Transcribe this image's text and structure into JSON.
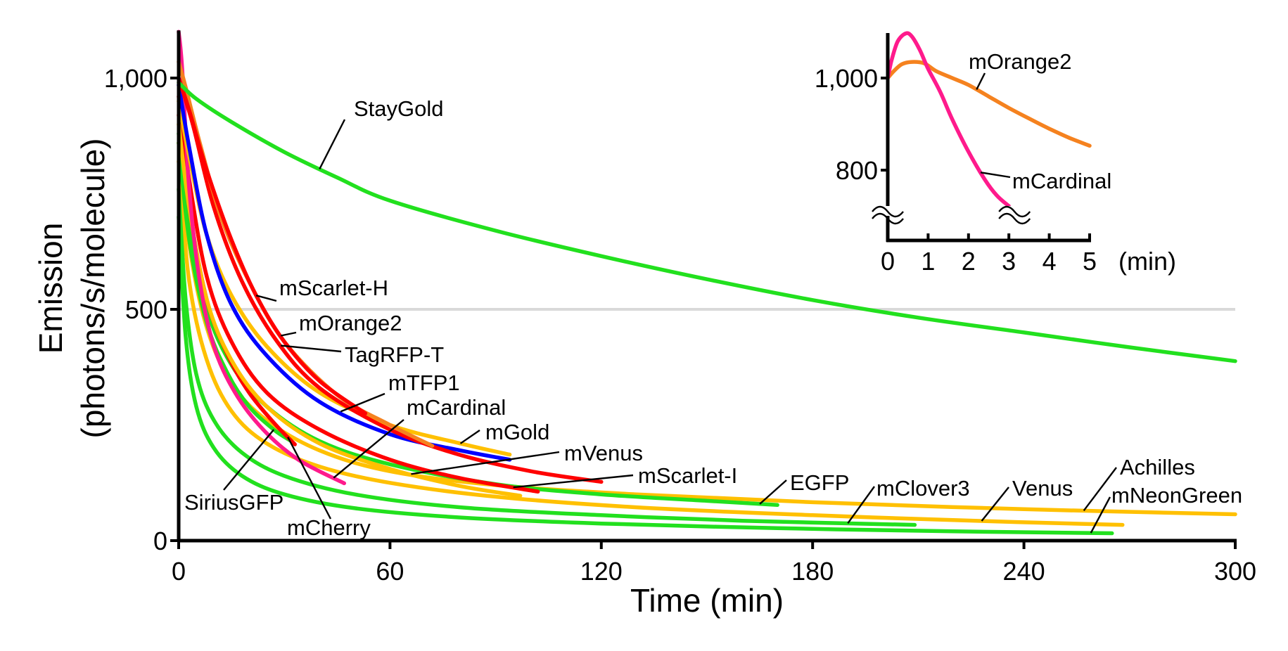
{
  "chart_data": [
    {
      "type": "line",
      "title": "",
      "xlabel": "Time (min)",
      "ylabel": "Emission",
      "ylabel2": "(photons/s/molecule)",
      "xlim": [
        0,
        300
      ],
      "ylim": [
        0,
        1100
      ],
      "xticks": [
        0,
        60,
        120,
        180,
        240,
        300
      ],
      "xtick_labels": [
        "0",
        "60",
        "120",
        "180",
        "240",
        "300"
      ],
      "yticks": [
        0,
        500,
        1000
      ],
      "ytick_labels": [
        "0",
        "500",
        "1,000"
      ],
      "reference_line": 500,
      "grid": false,
      "legend": "none (direct labels with leader lines)",
      "series": [
        {
          "name": "StayGold",
          "color": "#22e01e",
          "points": [
            [
              0,
              990
            ],
            [
              5,
              955
            ],
            [
              15,
              905
            ],
            [
              30,
              840
            ],
            [
              45,
              785
            ],
            [
              60,
              735
            ],
            [
              90,
              670
            ],
            [
              120,
              615
            ],
            [
              150,
              565
            ],
            [
              180,
              520
            ],
            [
              210,
              482
            ],
            [
              240,
              450
            ],
            [
              270,
              418
            ],
            [
              300,
              388
            ]
          ]
        },
        {
          "name": "mScarlet-H",
          "color": "#ff0000",
          "points": [
            [
              0,
              1000
            ],
            [
              3,
              930
            ],
            [
              8,
              800
            ],
            [
              15,
              650
            ],
            [
              22,
              530
            ],
            [
              30,
              430
            ],
            [
              40,
              345
            ],
            [
              53,
              275
            ]
          ]
        },
        {
          "name": "mOrange2",
          "color": "#f5821f",
          "points": [
            [
              0,
              1035
            ],
            [
              2,
              980
            ],
            [
              6,
              860
            ],
            [
              12,
              700
            ],
            [
              20,
              560
            ],
            [
              30,
              430
            ],
            [
              45,
              315
            ],
            [
              60,
              250
            ],
            [
              72,
              205
            ]
          ]
        },
        {
          "name": "TagRFP-T",
          "color": "#ff0000",
          "points": [
            [
              0,
              1000
            ],
            [
              4,
              900
            ],
            [
              10,
              720
            ],
            [
              18,
              560
            ],
            [
              28,
              430
            ],
            [
              40,
              330
            ],
            [
              60,
              240
            ],
            [
              80,
              185
            ],
            [
              100,
              150
            ],
            [
              120,
              127
            ]
          ]
        },
        {
          "name": "mTFP1",
          "color": "#0000ff",
          "points": [
            [
              0,
              985
            ],
            [
              3,
              850
            ],
            [
              8,
              660
            ],
            [
              15,
              510
            ],
            [
              25,
              400
            ],
            [
              40,
              300
            ],
            [
              60,
              230
            ],
            [
              80,
              195
            ],
            [
              94,
              175
            ]
          ]
        },
        {
          "name": "mGold",
          "color": "#ffc000",
          "points": [
            [
              0,
              950
            ],
            [
              3,
              830
            ],
            [
              8,
              660
            ],
            [
              15,
              530
            ],
            [
              25,
              420
            ],
            [
              40,
              320
            ],
            [
              60,
              250
            ],
            [
              80,
              210
            ],
            [
              94,
              186
            ]
          ]
        },
        {
          "name": "mCardinal",
          "color": "#ff1a8c",
          "points": [
            [
              0,
              1100
            ],
            [
              1,
              1020
            ],
            [
              3,
              760
            ],
            [
              6,
              560
            ],
            [
              10,
              420
            ],
            [
              16,
              320
            ],
            [
              24,
              240
            ],
            [
              34,
              175
            ],
            [
              47,
              124
            ]
          ]
        },
        {
          "name": "mVenus",
          "color": "#ffc000",
          "points": [
            [
              0,
              900
            ],
            [
              3,
              720
            ],
            [
              8,
              520
            ],
            [
              15,
              390
            ],
            [
              25,
              290
            ],
            [
              40,
              210
            ],
            [
              60,
              155
            ],
            [
              80,
              118
            ],
            [
              97,
              97
            ]
          ]
        },
        {
          "name": "mScarlet-I",
          "color": "#ff0000",
          "points": [
            [
              0,
              960
            ],
            [
              3,
              780
            ],
            [
              8,
              570
            ],
            [
              15,
              430
            ],
            [
              25,
              320
            ],
            [
              40,
              240
            ],
            [
              60,
              175
            ],
            [
              80,
              135
            ],
            [
              102,
              106
            ]
          ]
        },
        {
          "name": "mCherry",
          "color": "#ff0000",
          "points": [
            [
              0,
              920
            ],
            [
              3,
              720
            ],
            [
              8,
              520
            ],
            [
              14,
              400
            ],
            [
              20,
              320
            ],
            [
              27,
              255
            ],
            [
              33,
              208
            ]
          ]
        },
        {
          "name": "SiriusGFP",
          "color": "#22e01e",
          "points": [
            [
              0,
              860
            ],
            [
              3,
              650
            ],
            [
              8,
              470
            ],
            [
              14,
              360
            ],
            [
              20,
              290
            ],
            [
              27,
              240
            ],
            [
              32,
              215
            ]
          ]
        },
        {
          "name": "EGFP",
          "color": "#22e01e",
          "points": [
            [
              0,
              880
            ],
            [
              3,
              680
            ],
            [
              8,
              500
            ],
            [
              15,
              380
            ],
            [
              25,
              290
            ],
            [
              40,
              215
            ],
            [
              60,
              165
            ],
            [
              90,
              122
            ],
            [
              120,
              100
            ],
            [
              150,
              86
            ],
            [
              170,
              77
            ]
          ]
        },
        {
          "name": "mClover3",
          "color": "#22e01e",
          "points": [
            [
              0,
              760
            ],
            [
              2,
              520
            ],
            [
              5,
              360
            ],
            [
              10,
              260
            ],
            [
              18,
              190
            ],
            [
              30,
              140
            ],
            [
              50,
              100
            ],
            [
              80,
              72
            ],
            [
              120,
              55
            ],
            [
              160,
              43
            ],
            [
              209,
              34
            ]
          ]
        },
        {
          "name": "Venus",
          "color": "#ffc000",
          "points": [
            [
              0,
              820
            ],
            [
              3,
              560
            ],
            [
              8,
              390
            ],
            [
              15,
              280
            ],
            [
              25,
              210
            ],
            [
              40,
              160
            ],
            [
              60,
              125
            ],
            [
              90,
              95
            ],
            [
              130,
              72
            ],
            [
              180,
              55
            ],
            [
              230,
              42
            ],
            [
              268,
              34
            ]
          ]
        },
        {
          "name": "Achilles",
          "color": "#ffc000",
          "points": [
            [
              0,
              860
            ],
            [
              3,
              640
            ],
            [
              8,
              460
            ],
            [
              15,
              340
            ],
            [
              25,
              260
            ],
            [
              40,
              195
            ],
            [
              60,
              150
            ],
            [
              90,
              120
            ],
            [
              130,
              100
            ],
            [
              180,
              83
            ],
            [
              240,
              68
            ],
            [
              300,
              57
            ]
          ]
        },
        {
          "name": "mNeonGreen",
          "color": "#22e01e",
          "points": [
            [
              0,
              700
            ],
            [
              2,
              440
            ],
            [
              5,
              290
            ],
            [
              10,
              200
            ],
            [
              18,
              140
            ],
            [
              30,
              100
            ],
            [
              50,
              70
            ],
            [
              80,
              50
            ],
            [
              120,
              37
            ],
            [
              170,
              27
            ],
            [
              220,
              20
            ],
            [
              265,
              16
            ]
          ]
        }
      ]
    },
    {
      "type": "line",
      "title": "inset",
      "xlabel": "(min)",
      "xlim": [
        0,
        5
      ],
      "ylim": [
        660,
        1100
      ],
      "xticks": [
        0,
        1,
        2,
        3,
        4,
        5
      ],
      "xtick_labels": [
        "0",
        "1",
        "2",
        "3",
        "4",
        "5"
      ],
      "yticks": [
        800,
        1000
      ],
      "ytick_labels": [
        "800",
        "1,000"
      ],
      "axis_break": "y-axis below 800; mCardinal truncated at 3 min",
      "series": [
        {
          "name": "mOrange2",
          "color": "#f5821f",
          "points": [
            [
              0,
              1000
            ],
            [
              0.15,
              1015
            ],
            [
              0.35,
              1030
            ],
            [
              0.6,
              1035
            ],
            [
              0.9,
              1032
            ],
            [
              1.2,
              1015
            ],
            [
              1.6,
              1000
            ],
            [
              2,
              985
            ],
            [
              2.5,
              960
            ],
            [
              3,
              935
            ],
            [
              3.5,
              912
            ],
            [
              4,
              890
            ],
            [
              4.5,
              870
            ],
            [
              5,
              853
            ]
          ]
        },
        {
          "name": "mCardinal",
          "color": "#ff1a8c",
          "points": [
            [
              0,
              1000
            ],
            [
              0.1,
              1040
            ],
            [
              0.25,
              1080
            ],
            [
              0.45,
              1097
            ],
            [
              0.6,
              1090
            ],
            [
              0.8,
              1060
            ],
            [
              1.0,
              1020
            ],
            [
              1.3,
              970
            ],
            [
              1.6,
              910
            ],
            [
              2.0,
              840
            ],
            [
              2.4,
              780
            ],
            [
              2.7,
              745
            ],
            [
              3.0,
              722
            ]
          ]
        }
      ]
    }
  ],
  "labels": {
    "ylabel_line1": "Emission",
    "ylabel_line2": "(photons/s/molecule)",
    "xlabel": "Time (min)",
    "inset_xlabel": "(min)"
  }
}
